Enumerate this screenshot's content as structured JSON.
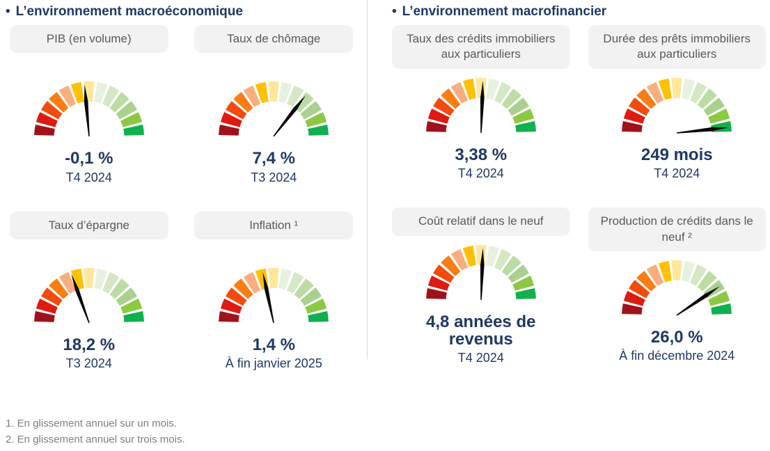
{
  "bullet": "•",
  "gauge_colors": [
    "#A0121B",
    "#DE1B12",
    "#F24B0D",
    "#FA7D14",
    "#FBAD7E",
    "#FFC000",
    "#FFE699",
    "#E7F1DF",
    "#D4E8C3",
    "#BCDCA4",
    "#A9D08E",
    "#8CC943",
    "#10B04F"
  ],
  "sections": [
    {
      "title": "L’environnement macroéconomique",
      "gauges": [
        {
          "label": "PIB (en volume)",
          "value": "-0,1 %",
          "period": "T4 2024",
          "needle_deg": -5
        },
        {
          "label": "Taux de chômage",
          "value": "7,4 %",
          "period": "T3 2024",
          "needle_deg": 38
        },
        {
          "label": "Taux d’épargne",
          "value": "18,2 %",
          "period": "T3 2024",
          "needle_deg": -20
        },
        {
          "label": "Inflation ¹",
          "value": "1,4 %",
          "period": "À fin janvier 2025",
          "needle_deg": -12
        }
      ]
    },
    {
      "title": "L’environnement macrofinancier",
      "gauges": [
        {
          "label": "Taux des crédits immobiliers aux particuliers",
          "value": "3,38 %",
          "period": "T4 2024",
          "needle_deg": 2
        },
        {
          "label": "Durée des prêts immobiliers aux particuliers",
          "value": "249 mois",
          "period": "T4 2024",
          "needle_deg": 84
        },
        {
          "label": "Coût relatif dans le neuf",
          "value": "4,8 années de revenus",
          "period": "T4 2024",
          "needle_deg": 2
        },
        {
          "label": "Production de crédits dans le neuf ²",
          "value": "26,0 %",
          "period": "À fin décembre 2024",
          "needle_deg": 56
        }
      ]
    }
  ],
  "footnotes": [
    "1. En glissement annuel sur un mois.",
    "2. En glissement annuel sur trois mois."
  ],
  "chart_data": [
    {
      "type": "gauge",
      "title": "PIB (en volume)",
      "value_label": "-0,1 %",
      "period": "T4 2024",
      "needle_fraction_left_to_right": 0.47,
      "scale": "13 segments, dark red (bad, left) to green (good, right), no numeric ticks"
    },
    {
      "type": "gauge",
      "title": "Taux de chômage",
      "value_label": "7,4 %",
      "period": "T3 2024",
      "needle_fraction_left_to_right": 0.71,
      "scale": "13 segments, dark red to green"
    },
    {
      "type": "gauge",
      "title": "Taux d’épargne",
      "value_label": "18,2 %",
      "period": "T3 2024",
      "needle_fraction_left_to_right": 0.39,
      "scale": "13 segments, dark red to green"
    },
    {
      "type": "gauge",
      "title": "Inflation (en glissement annuel sur un mois)",
      "value_label": "1,4 %",
      "period": "À fin janvier 2025",
      "needle_fraction_left_to_right": 0.43,
      "scale": "13 segments, dark red to green"
    },
    {
      "type": "gauge",
      "title": "Taux des crédits immobiliers aux particuliers",
      "value_label": "3,38 %",
      "period": "T4 2024",
      "needle_fraction_left_to_right": 0.51,
      "scale": "13 segments, dark red to green"
    },
    {
      "type": "gauge",
      "title": "Durée des prêts immobiliers aux particuliers",
      "value_label": "249 mois",
      "period": "T4 2024",
      "needle_fraction_left_to_right": 0.97,
      "scale": "13 segments, dark red to green"
    },
    {
      "type": "gauge",
      "title": "Coût relatif dans le neuf",
      "value_label": "4,8 années de revenus",
      "period": "T4 2024",
      "needle_fraction_left_to_right": 0.51,
      "scale": "13 segments, dark red to green"
    },
    {
      "type": "gauge",
      "title": "Production de crédits dans le neuf (en glissement annuel sur trois mois)",
      "value_label": "26,0 %",
      "period": "À fin décembre 2024",
      "needle_fraction_left_to_right": 0.81,
      "scale": "13 segments, dark red to green"
    }
  ]
}
